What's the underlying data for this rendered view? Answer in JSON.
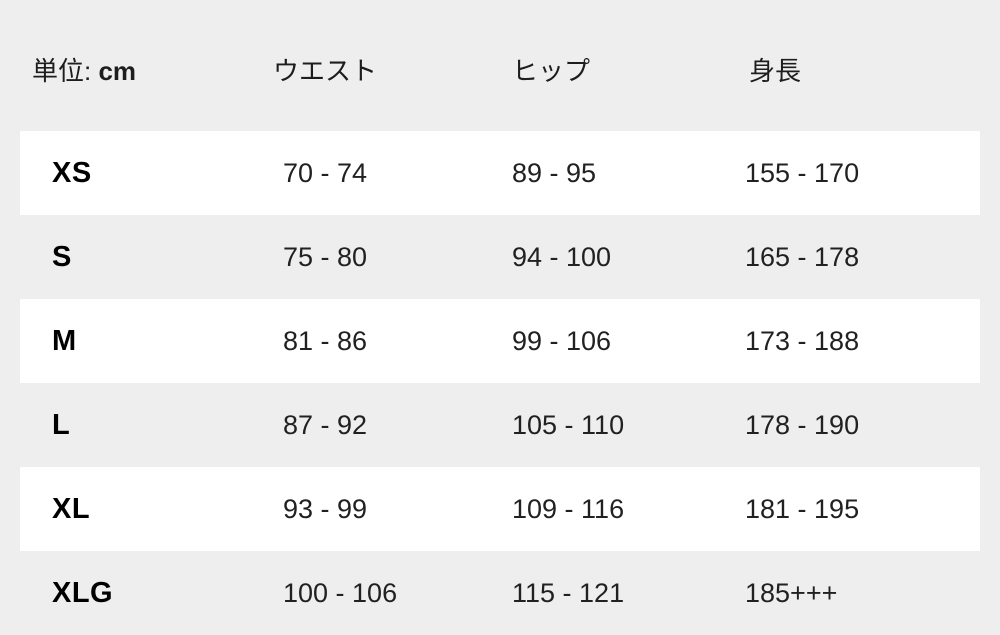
{
  "page": {
    "background_color": "#eeeeee",
    "stripe_color": "#ffffff",
    "text_color": "#212121"
  },
  "table": {
    "unit_prefix": "単位: ",
    "unit_value": "cm",
    "columns": [
      "ウエスト",
      "ヒップ",
      "身長"
    ],
    "rows": [
      {
        "size": "XS",
        "waist": "70 - 74",
        "hip": "89 - 95",
        "height": "155 - 170"
      },
      {
        "size": "S",
        "waist": "75 - 80",
        "hip": "94 - 100",
        "height": "165 - 178"
      },
      {
        "size": "M",
        "waist": "81 - 86",
        "hip": "99 - 106",
        "height": "173 - 188"
      },
      {
        "size": "L",
        "waist": "87 - 92",
        "hip": "105 - 110",
        "height": "178 - 190"
      },
      {
        "size": "XL",
        "waist": "93 - 99",
        "hip": "109 - 116",
        "height": "181 - 195"
      },
      {
        "size": "XLG",
        "waist": "100 - 106",
        "hip": "115 - 121",
        "height": "185+++"
      }
    ]
  }
}
